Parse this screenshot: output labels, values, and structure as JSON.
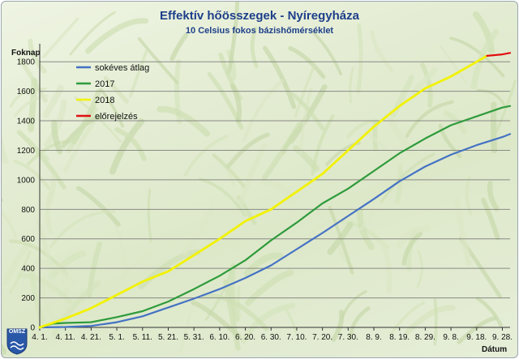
{
  "header": {
    "title": "Effektív hőösszegek - Nyíregyháza",
    "subtitle": "10 Celsius fokos bázishőmérséklet"
  },
  "axes": {
    "y_label": "Foknap",
    "x_label": "Dátum"
  },
  "logo": {
    "text": "OMSZ"
  },
  "colors": {
    "sokeves": "#4472c4",
    "y2017": "#2e9b3c",
    "y2018": "#f2f200",
    "forecast": "#e01010",
    "grid": "#7a7a7a"
  },
  "chart_data": {
    "type": "line",
    "title": "Effektív hőösszegek - Nyíregyháza",
    "subtitle": "10 Celsius fokos bázishőmérséklet",
    "xlabel": "Dátum",
    "ylabel": "Foknap",
    "ylim": [
      0,
      1900
    ],
    "yticks": [
      0,
      200,
      400,
      600,
      800,
      1000,
      1200,
      1400,
      1600,
      1800
    ],
    "grid": true,
    "legend": "top-left",
    "x_tick_labels": [
      "4. 1.",
      "4. 11.",
      "4. 21.",
      "5. 1.",
      "5. 11.",
      "5. 21.",
      "5. 31.",
      "6. 10.",
      "6. 20.",
      "6. 30.",
      "7. 10.",
      "7. 20.",
      "7. 30.",
      "8. 9.",
      "8. 19.",
      "8. 29.",
      "9. 8.",
      "9. 18.",
      "9. 28."
    ],
    "series": [
      {
        "name": "sokéves átlag",
        "x": [
          "4. 1.",
          "4. 11.",
          "4. 21.",
          "5. 1.",
          "5. 11.",
          "5. 21.",
          "5. 31.",
          "6. 10.",
          "6. 20.",
          "6. 30.",
          "7. 10.",
          "7. 20.",
          "7. 30.",
          "8. 9.",
          "8. 19.",
          "8. 29.",
          "9. 8.",
          "9. 18.",
          "9. 28.",
          "10. 1."
        ],
        "values": [
          0,
          3,
          10,
          35,
          75,
          135,
          195,
          260,
          335,
          420,
          530,
          640,
          755,
          870,
          990,
          1090,
          1170,
          1235,
          1290,
          1310
        ]
      },
      {
        "name": "2017",
        "x": [
          "4. 1.",
          "4. 6.",
          "4. 11.",
          "4. 21.",
          "5. 1.",
          "5. 11.",
          "5. 21.",
          "5. 31.",
          "6. 10.",
          "6. 20.",
          "6. 30.",
          "7. 10.",
          "7. 20.",
          "7. 30.",
          "8. 9.",
          "8. 19.",
          "8. 29.",
          "9. 8.",
          "9. 18.",
          "9. 28.",
          "10. 1."
        ],
        "values": [
          0,
          25,
          30,
          35,
          70,
          110,
          175,
          260,
          350,
          455,
          590,
          710,
          840,
          940,
          1060,
          1180,
          1280,
          1370,
          1430,
          1490,
          1500
        ]
      },
      {
        "name": "2018",
        "x": [
          "4. 1.",
          "4. 11.",
          "4. 21.",
          "5. 1.",
          "5. 11.",
          "5. 21.",
          "5. 31.",
          "6. 10.",
          "6. 20.",
          "6. 30.",
          "7. 10.",
          "7. 20.",
          "7. 30.",
          "8. 9.",
          "8. 19.",
          "8. 29.",
          "9. 8.",
          "9. 18.",
          "9. 22."
        ],
        "values": [
          0,
          60,
          130,
          220,
          310,
          380,
          490,
          600,
          720,
          800,
          920,
          1040,
          1200,
          1360,
          1500,
          1620,
          1700,
          1800,
          1840
        ]
      },
      {
        "name": "előrejelzés",
        "x": [
          "9. 22.",
          "9. 25.",
          "9. 28.",
          "10. 1."
        ],
        "values": [
          1840,
          1845,
          1850,
          1860
        ]
      }
    ]
  }
}
